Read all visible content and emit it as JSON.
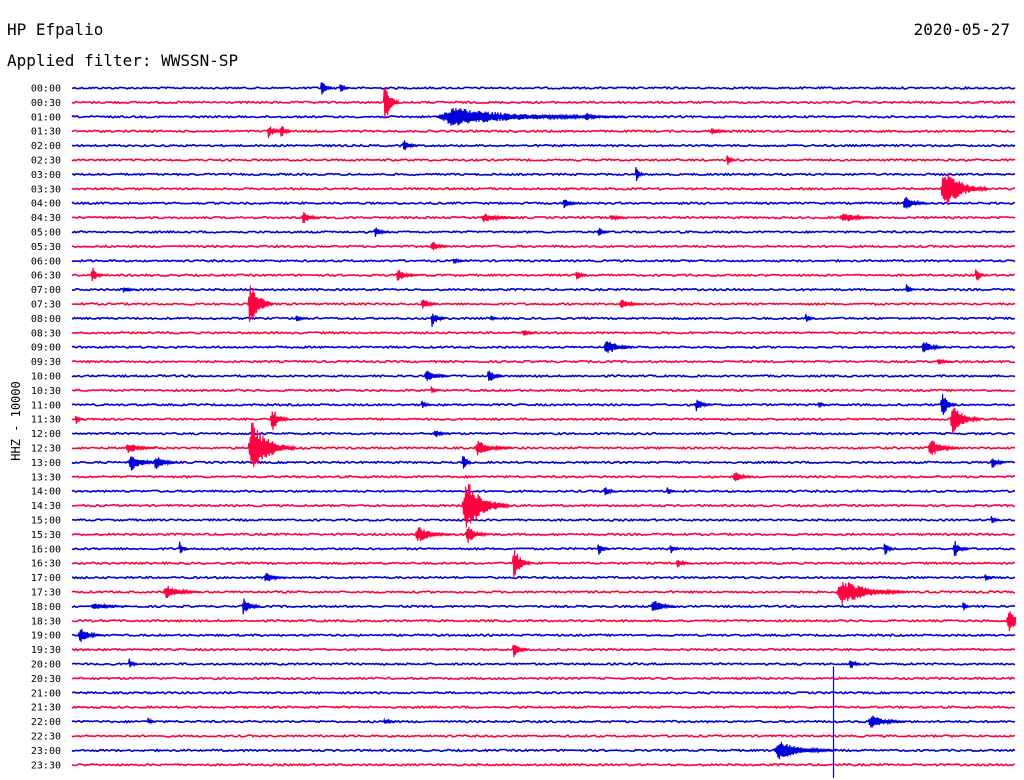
{
  "header": {
    "station": "HP Efpalio",
    "date": "2020-05-27",
    "filter": "Applied filter: WWSSN-SP"
  },
  "colors": {
    "blue": "#0000d8",
    "red": "#ff0040"
  },
  "chart_data": {
    "type": "line",
    "title": "HP Efpalio",
    "subtitle": "Applied filter: WWSSN-SP",
    "ylabel": "HHZ - 10000",
    "trace_count": 48,
    "minutes_per_line": 30,
    "color_cycle": [
      "blue",
      "red"
    ],
    "tick_labels": [
      "00:00",
      "00:30",
      "01:00",
      "01:30",
      "02:00",
      "02:30",
      "03:00",
      "03:30",
      "04:00",
      "04:30",
      "05:00",
      "05:30",
      "06:00",
      "06:30",
      "07:00",
      "07:30",
      "08:00",
      "08:30",
      "09:00",
      "09:30",
      "10:00",
      "10:30",
      "11:00",
      "11:30",
      "12:00",
      "12:30",
      "13:00",
      "13:30",
      "14:00",
      "14:30",
      "15:00",
      "15:30",
      "16:00",
      "16:30",
      "17:00",
      "17:30",
      "18:00",
      "18:30",
      "19:00",
      "19:30",
      "20:00",
      "20:30",
      "21:00",
      "21:30",
      "22:00",
      "22:30",
      "23:00",
      "23:30"
    ],
    "events": [
      {
        "line": 0,
        "minute": 7.9,
        "amp": 9,
        "dur": 0.4
      },
      {
        "line": 0,
        "minute": 8.5,
        "amp": 7,
        "dur": 0.3
      },
      {
        "line": 1,
        "minute": 9.9,
        "amp": 25,
        "dur": 0.5
      },
      {
        "line": 2,
        "minute": 11.6,
        "amp": 10,
        "dur": 6.0
      },
      {
        "line": 2,
        "minute": 16.3,
        "amp": 6,
        "dur": 0.5
      },
      {
        "line": 3,
        "minute": 6.2,
        "amp": 8,
        "dur": 0.5
      },
      {
        "line": 3,
        "minute": 6.6,
        "amp": 9,
        "dur": 0.4
      },
      {
        "line": 3,
        "minute": 20.3,
        "amp": 4,
        "dur": 0.6
      },
      {
        "line": 4,
        "minute": 10.5,
        "amp": 7,
        "dur": 0.5
      },
      {
        "line": 5,
        "minute": 20.8,
        "amp": 7,
        "dur": 0.3
      },
      {
        "line": 6,
        "minute": 17.9,
        "amp": 9,
        "dur": 0.3
      },
      {
        "line": 7,
        "minute": 27.6,
        "amp": 22,
        "dur": 1.5
      },
      {
        "line": 8,
        "minute": 15.6,
        "amp": 6,
        "dur": 0.5
      },
      {
        "line": 8,
        "minute": 26.4,
        "amp": 8,
        "dur": 0.8
      },
      {
        "line": 9,
        "minute": 7.3,
        "amp": 7,
        "dur": 0.6
      },
      {
        "line": 9,
        "minute": 13.0,
        "amp": 5,
        "dur": 1.2
      },
      {
        "line": 9,
        "minute": 17.1,
        "amp": 4,
        "dur": 0.5
      },
      {
        "line": 9,
        "minute": 24.4,
        "amp": 6,
        "dur": 1.2
      },
      {
        "line": 10,
        "minute": 9.6,
        "amp": 6,
        "dur": 0.5
      },
      {
        "line": 10,
        "minute": 16.7,
        "amp": 6,
        "dur": 0.4
      },
      {
        "line": 11,
        "minute": 11.4,
        "amp": 6,
        "dur": 0.6
      },
      {
        "line": 12,
        "minute": 12.1,
        "amp": 3,
        "dur": 0.5
      },
      {
        "line": 13,
        "minute": 0.6,
        "amp": 10,
        "dur": 0.4
      },
      {
        "line": 13,
        "minute": 10.3,
        "amp": 7,
        "dur": 0.7
      },
      {
        "line": 13,
        "minute": 16.0,
        "amp": 6,
        "dur": 0.4
      },
      {
        "line": 13,
        "minute": 28.7,
        "amp": 11,
        "dur": 0.3
      },
      {
        "line": 14,
        "minute": 1.6,
        "amp": 4,
        "dur": 0.5
      },
      {
        "line": 14,
        "minute": 26.5,
        "amp": 6,
        "dur": 0.3
      },
      {
        "line": 15,
        "minute": 5.6,
        "amp": 28,
        "dur": 0.8
      },
      {
        "line": 15,
        "minute": 11.1,
        "amp": 8,
        "dur": 0.5
      },
      {
        "line": 15,
        "minute": 17.4,
        "amp": 5,
        "dur": 0.8
      },
      {
        "line": 16,
        "minute": 7.1,
        "amp": 4,
        "dur": 0.4
      },
      {
        "line": 16,
        "minute": 11.4,
        "amp": 9,
        "dur": 0.5
      },
      {
        "line": 16,
        "minute": 13.3,
        "amp": 3,
        "dur": 0.3
      },
      {
        "line": 16,
        "minute": 23.3,
        "amp": 6,
        "dur": 0.3
      },
      {
        "line": 17,
        "minute": 14.3,
        "amp": 4,
        "dur": 0.5
      },
      {
        "line": 18,
        "minute": 16.9,
        "amp": 10,
        "dur": 0.9
      },
      {
        "line": 18,
        "minute": 27.0,
        "amp": 8,
        "dur": 0.7
      },
      {
        "line": 19,
        "minute": 27.5,
        "amp": 4,
        "dur": 0.5
      },
      {
        "line": 20,
        "minute": 11.2,
        "amp": 7,
        "dur": 0.8
      },
      {
        "line": 20,
        "minute": 13.2,
        "amp": 9,
        "dur": 0.5
      },
      {
        "line": 21,
        "minute": 11.4,
        "amp": 5,
        "dur": 0.3
      },
      {
        "line": 22,
        "minute": 11.1,
        "amp": 5,
        "dur": 0.3
      },
      {
        "line": 22,
        "minute": 19.8,
        "amp": 7,
        "dur": 0.6
      },
      {
        "line": 22,
        "minute": 23.7,
        "amp": 4,
        "dur": 0.3
      },
      {
        "line": 22,
        "minute": 27.6,
        "amp": 16,
        "dur": 0.5
      },
      {
        "line": 23,
        "minute": 0.1,
        "amp": 6,
        "dur": 0.3
      },
      {
        "line": 23,
        "minute": 6.3,
        "amp": 14,
        "dur": 0.6
      },
      {
        "line": 23,
        "minute": 27.9,
        "amp": 16,
        "dur": 1.0
      },
      {
        "line": 24,
        "minute": 11.5,
        "amp": 5,
        "dur": 0.5
      },
      {
        "line": 25,
        "minute": 1.7,
        "amp": 6,
        "dur": 1.0
      },
      {
        "line": 25,
        "minute": 5.6,
        "amp": 28,
        "dur": 1.5
      },
      {
        "line": 25,
        "minute": 12.8,
        "amp": 8,
        "dur": 1.2
      },
      {
        "line": 25,
        "minute": 27.2,
        "amp": 10,
        "dur": 1.0
      },
      {
        "line": 26,
        "minute": 1.8,
        "amp": 10,
        "dur": 0.9
      },
      {
        "line": 26,
        "minute": 2.6,
        "amp": 8,
        "dur": 0.8
      },
      {
        "line": 26,
        "minute": 12.4,
        "amp": 13,
        "dur": 0.3
      },
      {
        "line": 26,
        "minute": 29.2,
        "amp": 7,
        "dur": 0.5
      },
      {
        "line": 27,
        "minute": 21.0,
        "amp": 6,
        "dur": 0.7
      },
      {
        "line": 28,
        "minute": 16.9,
        "amp": 7,
        "dur": 0.4
      },
      {
        "line": 28,
        "minute": 18.9,
        "amp": 5,
        "dur": 0.3
      },
      {
        "line": 29,
        "minute": 12.4,
        "amp": 30,
        "dur": 1.5
      },
      {
        "line": 30,
        "minute": 29.2,
        "amp": 5,
        "dur": 0.3
      },
      {
        "line": 31,
        "minute": 10.9,
        "amp": 9,
        "dur": 1.2
      },
      {
        "line": 31,
        "minute": 12.5,
        "amp": 10,
        "dur": 0.8
      },
      {
        "line": 32,
        "minute": 3.4,
        "amp": 8,
        "dur": 0.3
      },
      {
        "line": 32,
        "minute": 16.7,
        "amp": 8,
        "dur": 0.4
      },
      {
        "line": 32,
        "minute": 19.0,
        "amp": 7,
        "dur": 0.3
      },
      {
        "line": 32,
        "minute": 25.8,
        "amp": 9,
        "dur": 0.3
      },
      {
        "line": 32,
        "minute": 28.0,
        "amp": 10,
        "dur": 0.5
      },
      {
        "line": 33,
        "minute": 14.0,
        "amp": 18,
        "dur": 0.6
      },
      {
        "line": 33,
        "minute": 19.2,
        "amp": 5,
        "dur": 0.5
      },
      {
        "line": 34,
        "minute": 6.1,
        "amp": 6,
        "dur": 0.7
      },
      {
        "line": 34,
        "minute": 29.0,
        "amp": 5,
        "dur": 0.3
      },
      {
        "line": 35,
        "minute": 2.9,
        "amp": 8,
        "dur": 1.2
      },
      {
        "line": 35,
        "minute": 24.3,
        "amp": 14,
        "dur": 2.2
      },
      {
        "line": 36,
        "minute": 0.6,
        "amp": 4,
        "dur": 1.2
      },
      {
        "line": 36,
        "minute": 5.4,
        "amp": 10,
        "dur": 0.6
      },
      {
        "line": 36,
        "minute": 18.4,
        "amp": 8,
        "dur": 0.8
      },
      {
        "line": 36,
        "minute": 28.3,
        "amp": 5,
        "dur": 0.3
      },
      {
        "line": 37,
        "minute": 29.7,
        "amp": 14,
        "dur": 0.8
      },
      {
        "line": 38,
        "minute": 0.2,
        "amp": 8,
        "dur": 0.8
      },
      {
        "line": 39,
        "minute": 14.0,
        "amp": 9,
        "dur": 0.5
      },
      {
        "line": 40,
        "minute": 1.8,
        "amp": 7,
        "dur": 0.3
      },
      {
        "line": 40,
        "minute": 24.7,
        "amp": 7,
        "dur": 0.4
      },
      {
        "line": 44,
        "minute": 2.4,
        "amp": 4,
        "dur": 0.3
      },
      {
        "line": 44,
        "minute": 9.9,
        "amp": 4,
        "dur": 0.4
      },
      {
        "line": 44,
        "minute": 25.3,
        "amp": 8,
        "dur": 1.2
      },
      {
        "line": 46,
        "minute": 22.3,
        "amp": 10,
        "dur": 2.0
      }
    ],
    "spikes": [
      {
        "minute": 24.2,
        "top_line": 41,
        "bottom_line": 47
      }
    ]
  }
}
